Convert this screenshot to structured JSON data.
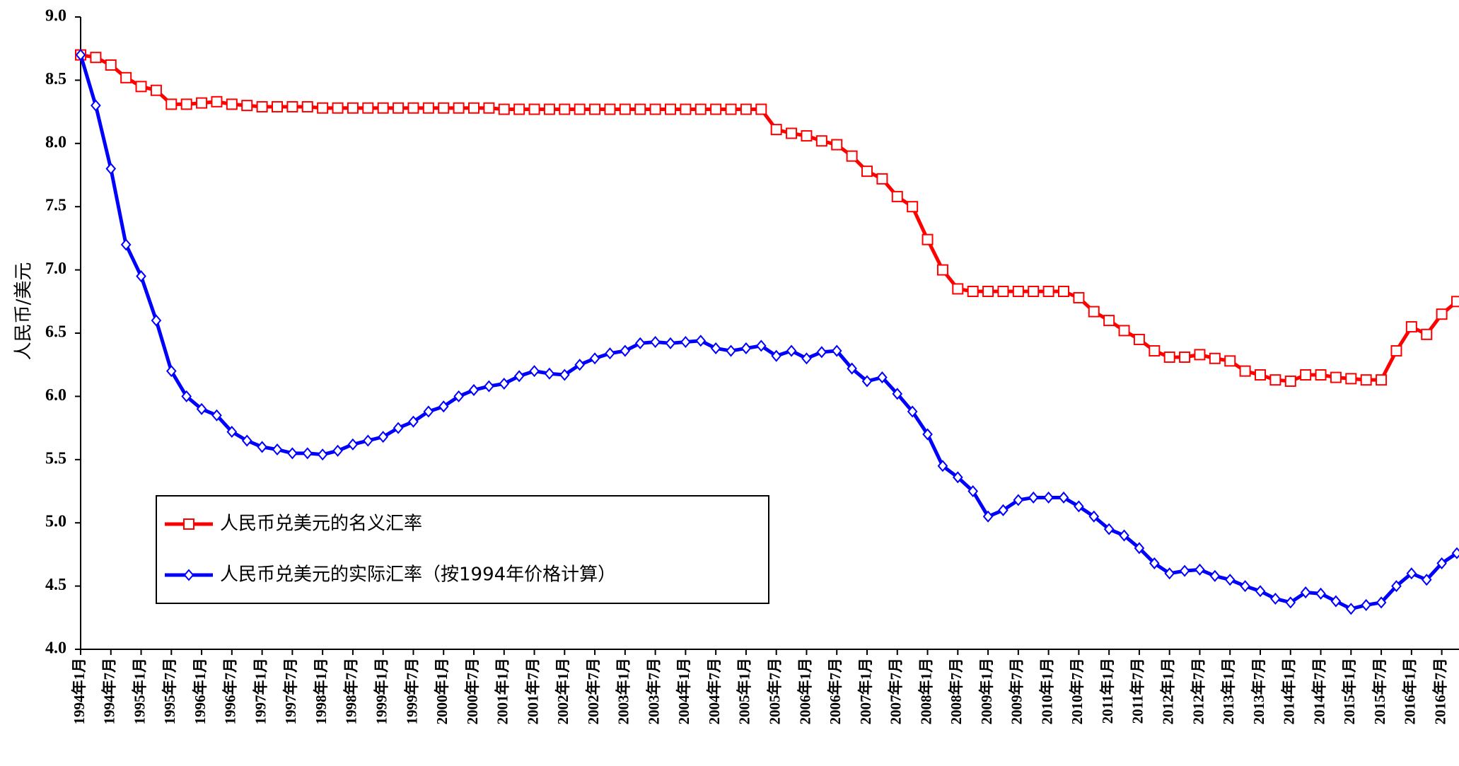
{
  "chart_data": {
    "type": "line",
    "ylabel": "人民币/美元",
    "ylim": [
      4,
      9
    ],
    "yticks": [
      {
        "value": 4,
        "label": "4.0"
      },
      4.5,
      {
        "value": 5,
        "label": "5.0"
      },
      5.5,
      {
        "value": 6,
        "label": "6.0"
      },
      6.5,
      {
        "value": 7,
        "label": "7.0"
      },
      7.5,
      {
        "value": 8,
        "label": "8.0"
      },
      8.5,
      {
        "value": 9,
        "label": "9.0"
      }
    ],
    "categories": [
      "1994年1月",
      null,
      "1994年7月",
      null,
      "1995年1月",
      null,
      "1995年7月",
      null,
      "1996年1月",
      null,
      "1996年7月",
      null,
      "1997年1月",
      null,
      "1997年7月",
      null,
      "1998年1月",
      null,
      "1998年7月",
      null,
      "1999年1月",
      null,
      "1999年7月",
      null,
      "2000年1月",
      null,
      "2000年7月",
      null,
      "2001年1月",
      null,
      "2001年7月",
      null,
      "2002年1月",
      null,
      "2002年7月",
      null,
      "2003年1月",
      null,
      "2003年7月",
      null,
      "2004年1月",
      null,
      "2004年7月",
      null,
      "2005年1月",
      null,
      "2005年7月",
      null,
      "2006年1月",
      null,
      "2006年7月",
      null,
      "2007年1月",
      null,
      "2007年7月",
      null,
      "2008年1月",
      null,
      "2008年7月",
      null,
      "2009年1月",
      null,
      "2009年7月",
      null,
      "2010年1月",
      null,
      "2010年7月",
      null,
      "2011年1月",
      null,
      "2011年7月",
      null,
      "2012年1月",
      null,
      "2012年7月",
      null,
      "2013年1月",
      null,
      "2013年7月",
      null,
      "2014年1月",
      null,
      "2014年7月",
      null,
      "2015年1月",
      null,
      "2015年7月",
      null,
      "2016年1月",
      null,
      "2016年7月",
      null
    ],
    "series": [
      {
        "name": "人民币兑美元的名义汇率",
        "color": "#ff0000",
        "marker": "square",
        "values": [
          8.7,
          8.68,
          8.62,
          8.52,
          8.45,
          8.42,
          8.31,
          8.31,
          8.32,
          8.33,
          8.31,
          8.3,
          8.29,
          8.29,
          8.29,
          8.29,
          8.28,
          8.28,
          8.28,
          8.28,
          8.28,
          8.28,
          8.28,
          8.28,
          8.28,
          8.28,
          8.28,
          8.28,
          8.27,
          8.27,
          8.27,
          8.27,
          8.27,
          8.27,
          8.27,
          8.27,
          8.27,
          8.27,
          8.27,
          8.27,
          8.27,
          8.27,
          8.27,
          8.27,
          8.27,
          8.27,
          8.11,
          8.08,
          8.06,
          8.02,
          7.99,
          7.9,
          7.78,
          7.72,
          7.58,
          7.5,
          7.24,
          7.0,
          6.85,
          6.83,
          6.83,
          6.83,
          6.83,
          6.83,
          6.83,
          6.83,
          6.78,
          6.67,
          6.6,
          6.52,
          6.45,
          6.36,
          6.31,
          6.31,
          6.33,
          6.3,
          6.28,
          6.2,
          6.17,
          6.13,
          6.12,
          6.17,
          6.17,
          6.15,
          6.14,
          6.13,
          6.13,
          6.36,
          6.55,
          6.49,
          6.65,
          6.75
        ]
      },
      {
        "name": "人民币兑美元的实际汇率（按1994年价格计算）",
        "color": "#0000ff",
        "marker": "diamond",
        "values": [
          8.7,
          8.3,
          7.8,
          7.2,
          6.95,
          6.6,
          6.2,
          6.0,
          5.9,
          5.85,
          5.72,
          5.65,
          5.6,
          5.58,
          5.55,
          5.55,
          5.54,
          5.57,
          5.62,
          5.65,
          5.68,
          5.75,
          5.8,
          5.88,
          5.92,
          6.0,
          6.05,
          6.08,
          6.1,
          6.16,
          6.2,
          6.18,
          6.17,
          6.25,
          6.3,
          6.34,
          6.36,
          6.42,
          6.43,
          6.42,
          6.43,
          6.44,
          6.38,
          6.36,
          6.38,
          6.4,
          6.32,
          6.36,
          6.3,
          6.35,
          6.36,
          6.22,
          6.12,
          6.15,
          6.02,
          5.88,
          5.7,
          5.45,
          5.36,
          5.25,
          5.05,
          5.1,
          5.18,
          5.2,
          5.2,
          5.2,
          5.13,
          5.05,
          4.95,
          4.9,
          4.8,
          4.68,
          4.6,
          4.62,
          4.63,
          4.58,
          4.55,
          4.5,
          4.46,
          4.4,
          4.37,
          4.45,
          4.44,
          4.38,
          4.32,
          4.35,
          4.37,
          4.5,
          4.6,
          4.55,
          4.68,
          4.76
        ]
      }
    ]
  }
}
